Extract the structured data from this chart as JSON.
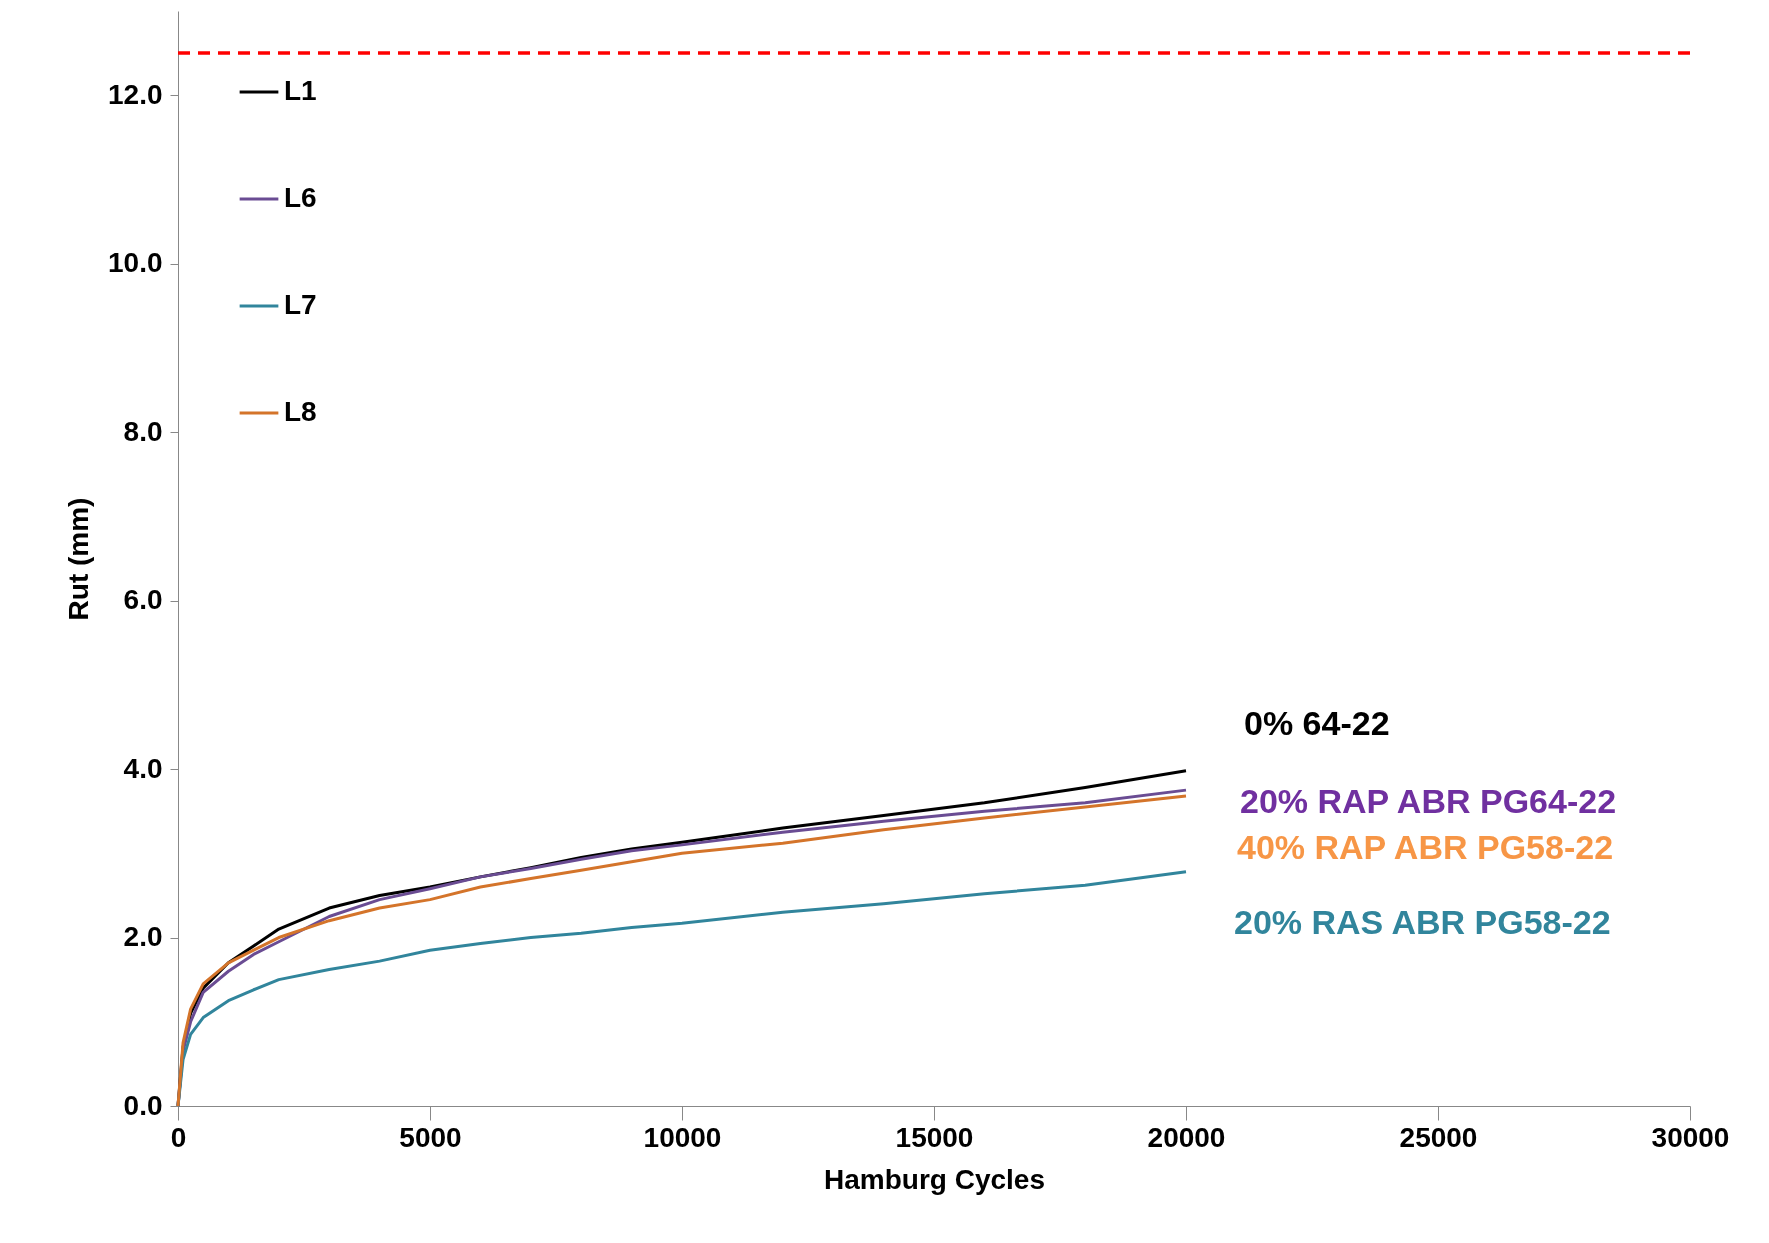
{
  "chart_data": {
    "type": "line",
    "xlabel": "Hamburg Cycles",
    "ylabel": "Rut (mm)",
    "x": [
      0,
      100,
      250,
      500,
      1000,
      1500,
      2000,
      3000,
      4000,
      5000,
      6000,
      7000,
      8000,
      9000,
      10000,
      12000,
      14000,
      16000,
      18000,
      20000
    ],
    "series": [
      {
        "name": "L1",
        "color": "#000000",
        "values": [
          0,
          0.7,
          1.1,
          1.4,
          1.7,
          1.9,
          2.1,
          2.35,
          2.5,
          2.6,
          2.72,
          2.83,
          2.95,
          3.05,
          3.13,
          3.3,
          3.45,
          3.6,
          3.78,
          3.98
        ]
      },
      {
        "name": "L6",
        "color": "#6a4c93",
        "values": [
          0,
          0.65,
          1.0,
          1.35,
          1.6,
          1.8,
          1.95,
          2.25,
          2.45,
          2.58,
          2.72,
          2.82,
          2.93,
          3.03,
          3.1,
          3.25,
          3.38,
          3.5,
          3.6,
          3.75
        ]
      },
      {
        "name": "L7",
        "color": "#31859c",
        "values": [
          0,
          0.55,
          0.85,
          1.05,
          1.25,
          1.38,
          1.5,
          1.62,
          1.72,
          1.85,
          1.93,
          2.0,
          2.05,
          2.12,
          2.17,
          2.3,
          2.4,
          2.52,
          2.62,
          2.78
        ]
      },
      {
        "name": "L8",
        "color": "#d4742a",
        "values": [
          0,
          0.75,
          1.15,
          1.45,
          1.7,
          1.85,
          2.0,
          2.2,
          2.35,
          2.45,
          2.6,
          2.7,
          2.8,
          2.9,
          3.0,
          3.12,
          3.28,
          3.42,
          3.55,
          3.68
        ]
      }
    ],
    "xlim": [
      0,
      30000
    ],
    "xticks": [
      0,
      5000,
      10000,
      15000,
      20000,
      25000,
      30000
    ],
    "ylim": [
      0,
      13
    ],
    "yticks": [
      {
        "value": 0,
        "label": "0.0"
      },
      {
        "value": 2,
        "label": "2.0"
      },
      {
        "value": 4,
        "label": "4.0"
      },
      {
        "value": 6,
        "label": "6.0"
      },
      {
        "value": 8,
        "label": "8.0"
      },
      {
        "value": 10,
        "label": "10.0"
      },
      {
        "value": 12,
        "label": "12.0"
      }
    ],
    "ref_lines": [
      {
        "axis": "y",
        "value": 12.5,
        "color": "#ff0000",
        "line_style": "dashed"
      }
    ],
    "annotations": [
      "0% 64-22",
      "20% RAP ABR PG64-22",
      "40% RAP ABR PG58-22",
      "20% RAS ABR PG58-22"
    ],
    "legend": "top left",
    "grid": false,
    "marker": "none",
    "line_style": "solid"
  }
}
